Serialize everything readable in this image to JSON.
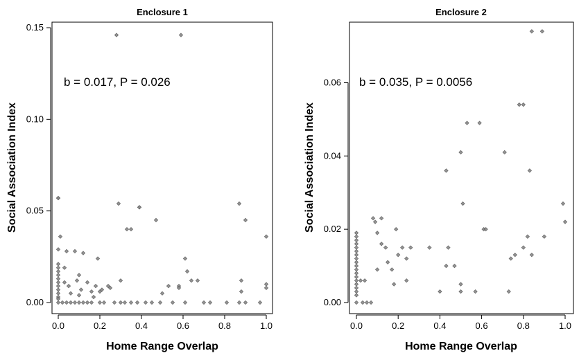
{
  "chart_data": [
    {
      "type": "scatter",
      "title": "Enclosure 1",
      "xlabel": "Home Range Overlap",
      "ylabel": "Social Association Index",
      "annotation": "b = 0.017, P = 0.026",
      "xlim": [
        0.0,
        1.0
      ],
      "ylim": [
        0.0,
        0.15
      ],
      "xticks": [
        0.0,
        0.2,
        0.4,
        0.6,
        0.8,
        1.0
      ],
      "xtick_labels": [
        "0.0",
        "0.2",
        "0.4",
        "0.6",
        "0.8",
        "1.0"
      ],
      "yticks": [
        0.0,
        0.05,
        0.1,
        0.15
      ],
      "ytick_labels": [
        "0.00",
        "0.05",
        "0.10",
        "0.15"
      ],
      "grid": false,
      "points": [
        [
          0.28,
          0.146
        ],
        [
          0.59,
          0.146
        ],
        [
          0.0,
          0.057
        ],
        [
          0.0,
          0.057
        ],
        [
          0.01,
          0.036
        ],
        [
          0.0,
          0.029
        ],
        [
          0.0,
          0.021
        ],
        [
          0.0,
          0.019
        ],
        [
          0.0,
          0.017
        ],
        [
          0.0,
          0.015
        ],
        [
          0.0,
          0.013
        ],
        [
          0.0,
          0.011
        ],
        [
          0.0,
          0.009
        ],
        [
          0.0,
          0.007
        ],
        [
          0.0,
          0.005
        ],
        [
          0.0,
          0.003
        ],
        [
          0.0,
          0.002
        ],
        [
          0.0,
          0.0
        ],
        [
          0.03,
          0.019
        ],
        [
          0.03,
          0.011
        ],
        [
          0.04,
          0.028
        ],
        [
          0.05,
          0.009
        ],
        [
          0.06,
          0.005
        ],
        [
          0.08,
          0.028
        ],
        [
          0.09,
          0.012
        ],
        [
          0.1,
          0.015
        ],
        [
          0.11,
          0.007
        ],
        [
          0.1,
          0.004
        ],
        [
          0.12,
          0.027
        ],
        [
          0.14,
          0.011
        ],
        [
          0.16,
          0.006
        ],
        [
          0.17,
          0.003
        ],
        [
          0.18,
          0.009
        ],
        [
          0.19,
          0.024
        ],
        [
          0.2,
          0.006
        ],
        [
          0.21,
          0.007
        ],
        [
          0.24,
          0.009
        ],
        [
          0.25,
          0.008
        ],
        [
          0.29,
          0.054
        ],
        [
          0.3,
          0.012
        ],
        [
          0.33,
          0.04
        ],
        [
          0.35,
          0.04
        ],
        [
          0.39,
          0.052
        ],
        [
          0.39,
          0.052
        ],
        [
          0.47,
          0.045
        ],
        [
          0.5,
          0.005
        ],
        [
          0.53,
          0.009
        ],
        [
          0.58,
          0.009
        ],
        [
          0.58,
          0.008
        ],
        [
          0.61,
          0.024
        ],
        [
          0.62,
          0.017
        ],
        [
          0.64,
          0.012
        ],
        [
          0.67,
          0.012
        ],
        [
          0.87,
          0.054
        ],
        [
          0.88,
          0.012
        ],
        [
          0.9,
          0.045
        ],
        [
          0.88,
          0.006
        ],
        [
          1.0,
          0.036
        ],
        [
          1.0,
          0.01
        ],
        [
          1.0,
          0.008
        ],
        [
          0.02,
          0.0
        ],
        [
          0.04,
          0.0
        ],
        [
          0.06,
          0.0
        ],
        [
          0.08,
          0.0
        ],
        [
          0.1,
          0.0
        ],
        [
          0.12,
          0.0
        ],
        [
          0.14,
          0.0
        ],
        [
          0.16,
          0.0
        ],
        [
          0.2,
          0.0
        ],
        [
          0.22,
          0.0
        ],
        [
          0.27,
          0.0
        ],
        [
          0.3,
          0.0
        ],
        [
          0.32,
          0.0
        ],
        [
          0.35,
          0.0
        ],
        [
          0.38,
          0.0
        ],
        [
          0.42,
          0.0
        ],
        [
          0.45,
          0.0
        ],
        [
          0.49,
          0.0
        ],
        [
          0.55,
          0.0
        ],
        [
          0.61,
          0.0
        ],
        [
          0.7,
          0.0
        ],
        [
          0.73,
          0.0
        ],
        [
          0.81,
          0.0
        ],
        [
          0.87,
          0.0
        ],
        [
          0.9,
          0.0
        ],
        [
          0.97,
          0.0
        ]
      ]
    },
    {
      "type": "scatter",
      "title": "Enclosure 2",
      "xlabel": "Home Range Overlap",
      "ylabel": "Social Association Index",
      "annotation": "b = 0.035, P = 0.0056",
      "xlim": [
        0.0,
        1.0
      ],
      "ylim": [
        0.0,
        0.075
      ],
      "xticks": [
        0.0,
        0.2,
        0.4,
        0.6,
        0.8,
        1.0
      ],
      "xtick_labels": [
        "0.0",
        "0.2",
        "0.4",
        "0.6",
        "0.8",
        "1.0"
      ],
      "yticks": [
        0.0,
        0.02,
        0.04,
        0.06
      ],
      "ytick_labels": [
        "0.00",
        "0.02",
        "0.04",
        "0.06"
      ],
      "grid": false,
      "points": [
        [
          0.84,
          0.074
        ],
        [
          0.89,
          0.074
        ],
        [
          0.0,
          0.019
        ],
        [
          0.0,
          0.018
        ],
        [
          0.0,
          0.017
        ],
        [
          0.0,
          0.016
        ],
        [
          0.0,
          0.015
        ],
        [
          0.0,
          0.014
        ],
        [
          0.0,
          0.013
        ],
        [
          0.0,
          0.012
        ],
        [
          0.0,
          0.011
        ],
        [
          0.0,
          0.01
        ],
        [
          0.0,
          0.009
        ],
        [
          0.0,
          0.008
        ],
        [
          0.0,
          0.007
        ],
        [
          0.0,
          0.006
        ],
        [
          0.0,
          0.005
        ],
        [
          0.0,
          0.004
        ],
        [
          0.0,
          0.003
        ],
        [
          0.0,
          0.002
        ],
        [
          0.0,
          0.0
        ],
        [
          0.03,
          0.0
        ],
        [
          0.05,
          0.0
        ],
        [
          0.07,
          0.0
        ],
        [
          0.02,
          0.006
        ],
        [
          0.04,
          0.006
        ],
        [
          0.08,
          0.023
        ],
        [
          0.09,
          0.022
        ],
        [
          0.1,
          0.019
        ],
        [
          0.1,
          0.009
        ],
        [
          0.12,
          0.016
        ],
        [
          0.12,
          0.023
        ],
        [
          0.14,
          0.015
        ],
        [
          0.15,
          0.011
        ],
        [
          0.17,
          0.009
        ],
        [
          0.18,
          0.005
        ],
        [
          0.19,
          0.02
        ],
        [
          0.2,
          0.013
        ],
        [
          0.22,
          0.015
        ],
        [
          0.24,
          0.012
        ],
        [
          0.24,
          0.006
        ],
        [
          0.26,
          0.015
        ],
        [
          0.35,
          0.015
        ],
        [
          0.4,
          0.003
        ],
        [
          0.43,
          0.01
        ],
        [
          0.43,
          0.036
        ],
        [
          0.44,
          0.015
        ],
        [
          0.47,
          0.01
        ],
        [
          0.5,
          0.041
        ],
        [
          0.51,
          0.027
        ],
        [
          0.5,
          0.005
        ],
        [
          0.5,
          0.003
        ],
        [
          0.53,
          0.049
        ],
        [
          0.57,
          0.003
        ],
        [
          0.59,
          0.049
        ],
        [
          0.61,
          0.02
        ],
        [
          0.62,
          0.02
        ],
        [
          0.71,
          0.041
        ],
        [
          0.73,
          0.003
        ],
        [
          0.74,
          0.012
        ],
        [
          0.76,
          0.013
        ],
        [
          0.78,
          0.054
        ],
        [
          0.8,
          0.054
        ],
        [
          0.8,
          0.015
        ],
        [
          0.82,
          0.018
        ],
        [
          0.83,
          0.036
        ],
        [
          0.84,
          0.013
        ],
        [
          0.9,
          0.018
        ],
        [
          0.99,
          0.027
        ],
        [
          1.0,
          0.022
        ]
      ]
    }
  ]
}
